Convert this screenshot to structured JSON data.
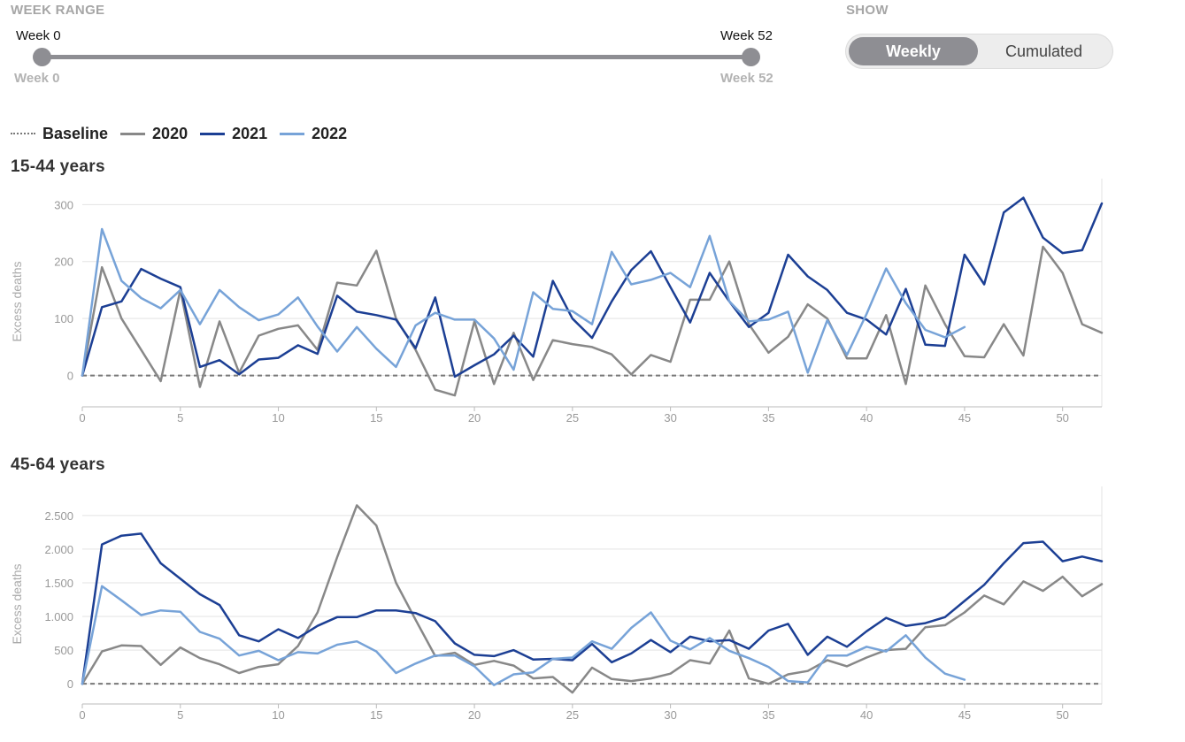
{
  "controls": {
    "week_range": {
      "label": "WEEK RANGE",
      "start_label": "Week 0",
      "end_label": "Week 52",
      "start_value_label": "Week 0",
      "end_value_label": "Week 52",
      "start": 0,
      "end": 52
    },
    "show": {
      "label": "SHOW",
      "options": [
        "Weekly",
        "Cumulated"
      ],
      "selected": "Weekly"
    }
  },
  "legend": {
    "items": [
      {
        "label": "Baseline",
        "color": "#777777",
        "style": "dotted"
      },
      {
        "label": "2020",
        "color": "#888888"
      },
      {
        "label": "2021",
        "color": "#1c3f94"
      },
      {
        "label": "2022",
        "color": "#77a3d8"
      }
    ]
  },
  "colors": {
    "2020": "#888888",
    "2021": "#1c3f94",
    "2022": "#77a3d8",
    "baseline": "#777777",
    "grid": "#e3e3e3"
  },
  "chart_data": [
    {
      "type": "line",
      "title": "15-44 years",
      "ylabel": "Excess deaths",
      "xlabel": "",
      "xlim": [
        0,
        52
      ],
      "ylim": [
        -55,
        330
      ],
      "x_ticks": [
        0,
        5,
        10,
        15,
        20,
        25,
        30,
        35,
        40,
        45,
        50
      ],
      "y_ticks": [
        0,
        100,
        200,
        300
      ],
      "y_tick_labels": [
        "0",
        "100",
        "200",
        "300"
      ],
      "grid": true,
      "baseline": 0,
      "series": [
        {
          "name": "2020",
          "values": [
            0,
            190,
            100,
            45,
            -10,
            150,
            -20,
            95,
            5,
            70,
            82,
            88,
            45,
            163,
            158,
            219,
            100,
            45,
            -25,
            -35,
            95,
            -15,
            75,
            -8,
            62,
            55,
            50,
            37,
            2,
            36,
            24,
            133,
            133,
            200,
            90,
            40,
            68,
            125,
            100,
            30,
            30,
            106,
            -15,
            158,
            90,
            34,
            32,
            90,
            35,
            226,
            180,
            90,
            75
          ]
        },
        {
          "name": "2021",
          "values": [
            0,
            120,
            130,
            187,
            170,
            155,
            15,
            27,
            2,
            28,
            31,
            53,
            38,
            140,
            112,
            106,
            98,
            48,
            137,
            -2,
            18,
            37,
            70,
            33,
            166,
            100,
            66,
            130,
            185,
            218,
            155,
            93,
            180,
            130,
            85,
            110,
            212,
            174,
            150,
            110,
            98,
            72,
            152,
            54,
            52,
            212,
            160,
            286,
            312,
            242,
            215,
            220,
            302
          ]
        },
        {
          "name": "2022",
          "values": [
            0,
            257,
            166,
            136,
            118,
            150,
            90,
            150,
            120,
            97,
            107,
            137,
            86,
            42,
            85,
            47,
            15,
            88,
            110,
            98,
            98,
            65,
            10,
            146,
            117,
            113,
            90,
            217,
            160,
            168,
            180,
            155,
            245,
            130,
            95,
            98,
            112,
            5,
            97,
            36,
            108,
            188,
            127,
            80,
            67,
            85
          ]
        }
      ]
    },
    {
      "type": "line",
      "title": "45-64 years",
      "ylabel": "Excess deaths",
      "xlabel": "",
      "xlim": [
        0,
        52
      ],
      "ylim": [
        -300,
        2800
      ],
      "x_ticks": [
        0,
        5,
        10,
        15,
        20,
        25,
        30,
        35,
        40,
        45,
        50
      ],
      "y_ticks": [
        0,
        500,
        1000,
        1500,
        2000,
        2500
      ],
      "y_tick_labels": [
        "0",
        "500",
        "1.000",
        "1.500",
        "2.000",
        "2.500"
      ],
      "grid": true,
      "baseline": 0,
      "series": [
        {
          "name": "2020",
          "values": [
            0,
            480,
            570,
            560,
            280,
            540,
            380,
            290,
            160,
            250,
            290,
            560,
            1060,
            1880,
            2650,
            2350,
            1500,
            950,
            410,
            460,
            280,
            340,
            270,
            80,
            100,
            -130,
            240,
            70,
            40,
            80,
            150,
            350,
            300,
            790,
            80,
            0,
            140,
            190,
            350,
            260,
            390,
            500,
            520,
            840,
            870,
            1060,
            1310,
            1180,
            1520,
            1380,
            1590,
            1300,
            1480
          ]
        },
        {
          "name": "2021",
          "values": [
            0,
            2070,
            2200,
            2230,
            1790,
            1560,
            1330,
            1170,
            720,
            630,
            810,
            680,
            860,
            990,
            990,
            1090,
            1090,
            1050,
            930,
            600,
            430,
            410,
            500,
            360,
            370,
            350,
            590,
            320,
            450,
            650,
            470,
            700,
            630,
            650,
            520,
            790,
            890,
            430,
            700,
            550,
            780,
            980,
            860,
            900,
            990,
            1230,
            1470,
            1790,
            2090,
            2110,
            1820,
            1890,
            1820
          ]
        },
        {
          "name": "2022",
          "values": [
            0,
            1450,
            1240,
            1020,
            1090,
            1070,
            770,
            670,
            420,
            490,
            350,
            470,
            450,
            580,
            630,
            480,
            160,
            300,
            420,
            420,
            260,
            -20,
            140,
            170,
            370,
            390,
            630,
            520,
            830,
            1060,
            640,
            510,
            680,
            490,
            380,
            250,
            40,
            20,
            420,
            420,
            550,
            480,
            720,
            390,
            150,
            60
          ]
        }
      ]
    }
  ]
}
